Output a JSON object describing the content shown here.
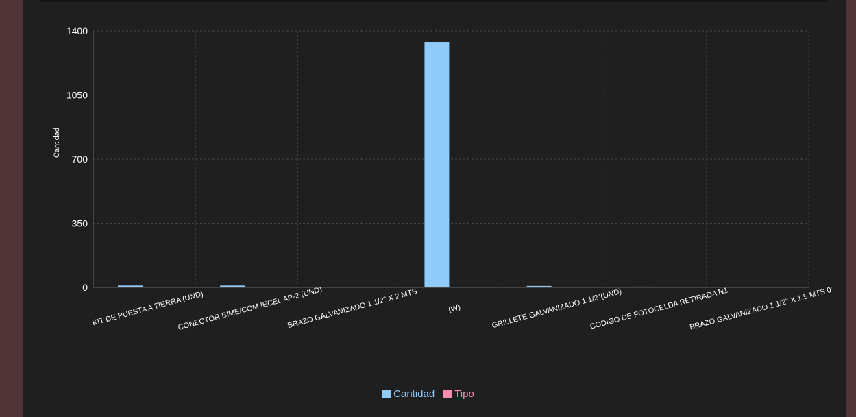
{
  "chart_data": {
    "type": "bar",
    "categories": [
      "KIT DE PUESTA A TIERRA (UND)",
      "CONECTOR BIME/COM IECEL AP-2 (UND)",
      "BRAZO GALVANIZADO 1 1/2\" X 2 MTS",
      "(W)",
      "GRILLETE GALVANIZADO 1 1/2\"(UND)",
      "CODIGO DE FOTOCELDA RETIRADA N1",
      "BRAZO GALVANIZADO 1 1/2\" X 1.5 MTS 0'"
    ],
    "series": [
      {
        "name": "Cantidad",
        "values": [
          10,
          10,
          2,
          1340,
          8,
          4,
          2
        ]
      },
      {
        "name": "Tipo",
        "values": [
          0,
          0,
          0,
          0,
          0,
          0,
          0
        ]
      }
    ],
    "ylabel": "Cantidad",
    "ylim": [
      0,
      1400
    ],
    "yticks": [
      "0",
      "350",
      "700",
      "1050",
      "1400"
    ],
    "grid": true,
    "legend_position": "bottom-center"
  },
  "colors": {
    "cantidad": "#90caf9",
    "tipo": "#f48fb1",
    "grid": "#444444",
    "axis": "#666666",
    "text": "#ffffff"
  }
}
